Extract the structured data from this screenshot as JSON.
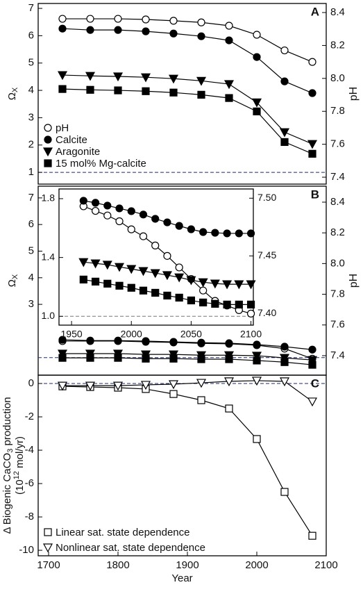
{
  "chart_data": [
    {
      "type": "line",
      "panel_label": "A",
      "y_label": [
        [
          {
            "text": "Ω"
          },
          {
            "text": "X",
            "sub": true
          }
        ]
      ],
      "y2_label": "pH",
      "x": [
        1720,
        1760,
        1800,
        1840,
        1880,
        1920,
        1960,
        2000,
        2040,
        2080
      ],
      "xlim": [
        1685,
        2100
      ],
      "ylim": [
        0.57,
        7.18
      ],
      "yticks": [
        1,
        2,
        3,
        4,
        5,
        6,
        7
      ],
      "y2lim": [
        7.358,
        8.455
      ],
      "y2ticks": [
        7.4,
        7.6,
        7.8,
        {
          "value": 8,
          "label": "8.0"
        },
        8.2,
        8.4
      ],
      "hline": 1,
      "legend": "lower left",
      "series": [
        {
          "name": "pH",
          "color": "#000000",
          "marker": "open-circle",
          "axis": "y2",
          "values": [
            8.362,
            8.362,
            8.362,
            8.358,
            8.35,
            8.34,
            8.32,
            8.265,
            8.17,
            8.1
          ]
        },
        {
          "name": "Calcite",
          "color": "#000000",
          "marker": "filled-circle",
          "values": [
            6.26,
            6.21,
            6.21,
            6.16,
            6.08,
            5.98,
            5.83,
            5.22,
            4.33,
            3.9
          ]
        },
        {
          "name": "Aragonite",
          "color": "#000000",
          "marker": "filled-triangle",
          "values": [
            4.56,
            4.53,
            4.51,
            4.48,
            4.43,
            4.35,
            4.23,
            3.56,
            2.47,
            2.04
          ]
        },
        {
          "name": "15 mol% Mg-calcite",
          "color": "#000000",
          "marker": "filled-square",
          "values": [
            4.05,
            4.02,
            4.0,
            3.97,
            3.92,
            3.84,
            3.72,
            3.23,
            2.11,
            1.68
          ]
        }
      ]
    },
    {
      "type": "line",
      "panel_label": "B",
      "y_label": [
        [
          {
            "text": "Ω"
          },
          {
            "text": "X",
            "sub": true
          }
        ]
      ],
      "y2_label": "pH",
      "x": [
        1720,
        1760,
        1800,
        1840,
        1880,
        1920,
        1960,
        2000,
        2040,
        2080
      ],
      "xlim": [
        1685,
        2100
      ],
      "ylim": [
        0.34,
        7.44
      ],
      "yticks": [
        3,
        4,
        5,
        6,
        7
      ],
      "y2lim": [
        7.273,
        8.504
      ],
      "y2ticks": [
        7.4,
        7.6,
        7.8,
        {
          "value": 8,
          "label": "8.0"
        },
        8.2,
        8.4
      ],
      "hline": 1,
      "series": [
        {
          "name": "pH",
          "color": "#000000",
          "marker": "open-circle",
          "axis": "y2",
          "values": [
            7.495,
            7.495,
            7.495,
            7.49,
            7.486,
            7.48,
            7.477,
            7.468,
            7.446,
            7.38
          ]
        },
        {
          "name": "Calcite",
          "color": "#000000",
          "marker": "filled-circle",
          "values": [
            1.67,
            1.64,
            1.64,
            1.62,
            1.59,
            1.56,
            1.54,
            1.49,
            1.41,
            1.3
          ]
        },
        {
          "name": "Aragonite",
          "color": "#000000",
          "marker": "filled-triangle",
          "values": [
            1.15,
            1.15,
            1.15,
            1.12,
            1.12,
            1.09,
            1.09,
            1.07,
            0.99,
            0.91
          ]
        },
        {
          "name": "15 mol% Mg-calcite",
          "color": "#000000",
          "marker": "filled-square",
          "values": [
            0.99,
            0.99,
            0.99,
            0.96,
            0.96,
            0.94,
            0.94,
            0.89,
            0.83,
            0.73
          ]
        }
      ]
    },
    {
      "type": "line",
      "panel_label": "C",
      "y_label": [
        [
          {
            "text": "Δ Biogenic CaCO"
          },
          {
            "text": "3",
            "sub": true
          },
          {
            "text": " production"
          }
        ],
        [
          {
            "text": "(10"
          },
          {
            "text": "12",
            "sup": true
          },
          {
            "text": " mol/yr)"
          }
        ]
      ],
      "x_label": "Year",
      "x": [
        1720,
        1760,
        1800,
        1840,
        1880,
        1920,
        1960,
        2000,
        2040,
        2080
      ],
      "xlim": [
        1685,
        2100
      ],
      "xticks": [
        1700,
        1800,
        1900,
        2000,
        2100
      ],
      "ylim": [
        -10.33,
        0.5
      ],
      "yticks": [
        0,
        -2,
        -4,
        -6,
        -8,
        -10
      ],
      "hline": 0,
      "legend": "lower left",
      "series": [
        {
          "name": "Linear sat. state dependence",
          "color": "#000000",
          "marker": "open-square",
          "values": [
            -0.17,
            -0.21,
            -0.25,
            -0.33,
            -0.63,
            -1.0,
            -1.5,
            -3.33,
            -6.5,
            -9.13
          ]
        },
        {
          "name": "Nonlinear sat. state dependence",
          "color": "#000000",
          "marker": "open-triangle",
          "values": [
            -0.13,
            -0.13,
            -0.13,
            -0.08,
            -0.04,
            0.04,
            0.13,
            0.17,
            0.13,
            -1.08
          ]
        }
      ]
    },
    {
      "type": "line",
      "x": [
        1960,
        1970,
        1980,
        1990,
        2000,
        2010,
        2020,
        2030,
        2040,
        2050,
        2060,
        2070,
        2080,
        2090,
        2100
      ],
      "xlim": [
        1939.5,
        2102
      ],
      "xticks": [
        1950,
        2000,
        2050,
        2100
      ],
      "ylim": [
        0.94,
        1.866
      ],
      "yticks": [
        {
          "value": 1,
          "label": "1.0"
        },
        1.4,
        1.8
      ],
      "y2lim": [
        7.39,
        7.508
      ],
      "y2ticks": [
        {
          "value": 7.4,
          "label": "7.40"
        },
        7.45,
        {
          "value": 7.5,
          "label": "7.50"
        }
      ],
      "hline": 1,
      "series": [
        {
          "name": "pH",
          "color": "#000000",
          "marker": "open-circle",
          "axis": "y2",
          "values": [
            7.493,
            7.489,
            7.485,
            7.48,
            7.473,
            7.467,
            7.459,
            7.45,
            7.44,
            7.43,
            7.42,
            7.411,
            7.407,
            7.403,
            7.4
          ]
        },
        {
          "name": "Calcite",
          "color": "#000000",
          "marker": "filled-circle",
          "values": [
            1.786,
            1.772,
            1.753,
            1.734,
            1.715,
            1.692,
            1.663,
            1.639,
            1.615,
            1.592,
            1.573,
            1.568,
            1.564,
            1.564,
            1.564
          ]
        },
        {
          "name": "Aragonite",
          "color": "#000000",
          "marker": "filled-triangle",
          "values": [
            1.369,
            1.36,
            1.351,
            1.336,
            1.322,
            1.308,
            1.294,
            1.28,
            1.265,
            1.246,
            1.232,
            1.223,
            1.218,
            1.218,
            1.218
          ]
        },
        {
          "name": "15 mol% Mg-calcite",
          "color": "#000000",
          "marker": "filled-square",
          "values": [
            1.25,
            1.236,
            1.222,
            1.208,
            1.194,
            1.175,
            1.16,
            1.141,
            1.127,
            1.108,
            1.094,
            1.085,
            1.08,
            1.08,
            1.08
          ]
        }
      ]
    }
  ]
}
